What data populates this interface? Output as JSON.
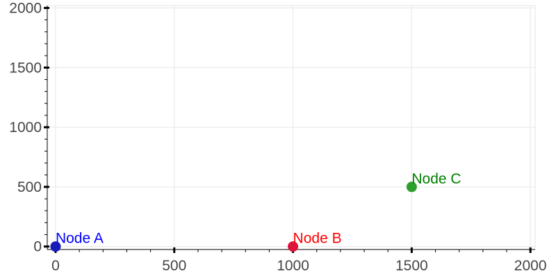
{
  "chart_data": {
    "type": "scatter",
    "title": "",
    "xlabel": "",
    "ylabel": "",
    "xlim": [
      -35,
      2020
    ],
    "ylim": [
      -25,
      2020
    ],
    "grid": true,
    "x_ticks": [
      0,
      500,
      1000,
      1500,
      2000
    ],
    "y_ticks": [
      0,
      500,
      1000,
      1500,
      2000
    ],
    "x_tick_labels": [
      "0",
      "500",
      "1000",
      "1500",
      "2000"
    ],
    "y_tick_labels": [
      "0",
      "500",
      "1000",
      "1500",
      "2000"
    ],
    "points": [
      {
        "label": "Node A",
        "x": 0,
        "y": 0,
        "color": "#0000ff",
        "marker_color": "#1a1ab8"
      },
      {
        "label": "Node B",
        "x": 1000,
        "y": 0,
        "color": "#ff0000",
        "marker_color": "#dc143c"
      },
      {
        "label": "Node C",
        "x": 1500,
        "y": 500,
        "color": "#008000",
        "marker_color": "#2ca02c"
      }
    ]
  }
}
